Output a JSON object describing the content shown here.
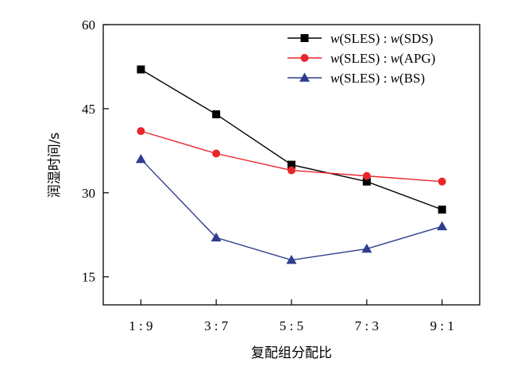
{
  "chart_data": {
    "type": "line",
    "title": "",
    "xlabel": "复配组分配比",
    "ylabel": "润湿时间/s",
    "categories": [
      "1 : 9",
      "3 : 7",
      "5 : 5",
      "7 : 3",
      "9 : 1"
    ],
    "ylim": [
      10,
      60
    ],
    "yticks": [
      15,
      30,
      45,
      60
    ],
    "grid": false,
    "legend_position": "top-right",
    "series": [
      {
        "name": "w(SLES) : w(SDS)",
        "name_parts": [
          "w",
          "(SLES) : ",
          "w",
          "(SDS)"
        ],
        "color": "#000000",
        "marker": "square",
        "values": [
          52,
          44,
          35,
          32,
          27
        ]
      },
      {
        "name": "w(SLES) : w(APG)",
        "name_parts": [
          "w",
          "(SLES) : ",
          "w",
          "(APG)"
        ],
        "color": "#e8262b",
        "marker": "circle",
        "values": [
          41,
          37,
          34,
          33,
          32
        ]
      },
      {
        "name": "w(SLES) : w(BS)",
        "name_parts": [
          "w",
          "(SLES) : ",
          "w",
          "(BS)"
        ],
        "color": "#2e3d8f",
        "marker": "triangle",
        "values": [
          36,
          22,
          18,
          20,
          24
        ]
      }
    ]
  }
}
